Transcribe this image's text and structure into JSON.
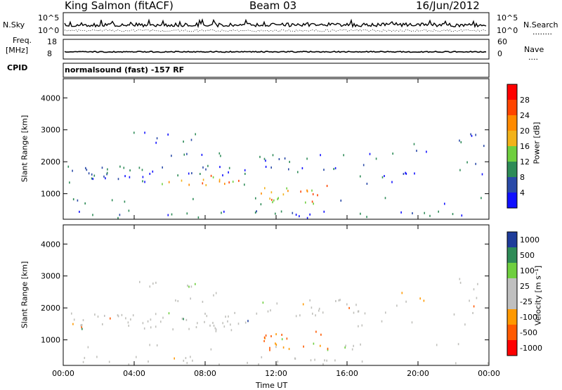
{
  "header": {
    "station": "King Salmon (fitACF)",
    "beam": "Beam 03",
    "date": "16/Jun/2012"
  },
  "panels": {
    "nsky_label": "N.Sky",
    "nsky_top_tick": "10^5",
    "nsky_bottom_tick": "10^0",
    "nsearch_label": "N.Search",
    "nsearch_dots": "........",
    "freq_label_line1": "Freq.",
    "freq_label_line2": "[MHz]",
    "freq_top_tick": "18",
    "freq_bottom_tick": "8",
    "nave_top_tick": "60",
    "nave_bottom_tick": "0",
    "nave_label": "Nave",
    "nave_dots": "....",
    "cpid_label": "CPID",
    "cpid_text": "normalsound (fast) -157 RF"
  },
  "colors": {
    "power": [
      "#1010ff",
      "#2a4aa8",
      "#2e8b57",
      "#6fcf3f",
      "#f2b21a",
      "#ff8a00",
      "#ff4500",
      "#ff0000"
    ],
    "velocity": [
      "#ff0000",
      "#ff5a00",
      "#ff9900",
      "#c0c0c0",
      "#c0c0c0",
      "#6fcf3f",
      "#2e8b57",
      "#1e3c9a"
    ],
    "ground_scatter": "#c0c0bc"
  },
  "chart_data": [
    {
      "type": "heatmap",
      "name": "power",
      "xlabel": "",
      "ylabel": "Slant Range [km]",
      "x_ticks": [
        "00:00",
        "04:00",
        "08:00",
        "12:00",
        "16:00",
        "20:00",
        "00:00"
      ],
      "y_ticks": [
        1000,
        2000,
        3000,
        4000
      ],
      "ylim": [
        200,
        4600
      ],
      "colorbar_label": "Power [dB]",
      "colorbar_ticks": [
        4,
        8,
        12,
        16,
        20,
        24,
        28
      ],
      "colorbar_range": [
        0,
        32
      ]
    },
    {
      "type": "heatmap",
      "name": "velocity",
      "xlabel": "Time UT",
      "ylabel": "Slant Range [km]",
      "x_ticks": [
        "00:00",
        "04:00",
        "08:00",
        "12:00",
        "16:00",
        "20:00",
        "00:00"
      ],
      "y_ticks": [
        1000,
        2000,
        3000,
        4000
      ],
      "ylim": [
        200,
        4600
      ],
      "colorbar_label": "Velocity [m s⁻¹]",
      "colorbar_ticks": [
        "1000",
        "500",
        "100",
        "25",
        "-25",
        "-100",
        "-500",
        "-1000"
      ]
    }
  ]
}
